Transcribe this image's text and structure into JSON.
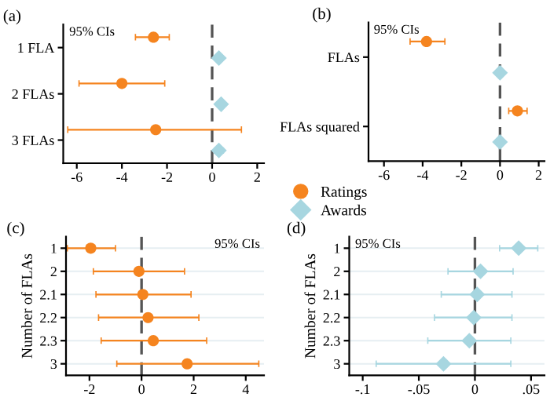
{
  "chart_data": [
    {
      "type": "scatter",
      "orientation": "horizontal",
      "title": "(a)",
      "annotations": [
        "95% CIs"
      ],
      "categories": [
        "1 FLA",
        "2 FLAs",
        "3 FLAs"
      ],
      "xlim": [
        -6.6,
        2.3
      ],
      "xticks": [
        -6,
        -4,
        -2,
        0,
        2
      ],
      "grid": false,
      "ref_lines": [
        {
          "axis": "x",
          "value": 0,
          "color": "#555555",
          "line_style": "dashed"
        }
      ],
      "series": [
        {
          "color": "#f5841f",
          "marker": "circle",
          "values": [
            -2.6,
            -4.0,
            -2.5
          ],
          "errors": [
            [
              -3.4,
              -1.9
            ],
            [
              -5.9,
              -2.1
            ],
            [
              -6.4,
              1.3
            ]
          ]
        },
        {
          "color": "#a7d6e0",
          "marker": "diamond",
          "values": [
            0.3,
            0.4,
            0.3
          ],
          "errors": [
            [
              0.15,
              0.45
            ],
            [
              0.25,
              0.55
            ],
            [
              0.1,
              0.5
            ]
          ]
        }
      ]
    },
    {
      "type": "scatter",
      "orientation": "horizontal",
      "title": "(b)",
      "annotations": [
        "95% CIs"
      ],
      "categories": [
        "FLAs",
        "FLAs squared"
      ],
      "xlim": [
        -6.8,
        2.3
      ],
      "xticks": [
        -6,
        -4,
        -2,
        0,
        2
      ],
      "grid": false,
      "legend": "bottom left",
      "ref_lines": [
        {
          "axis": "x",
          "value": 0,
          "color": "#555555",
          "line_style": "dashed"
        }
      ],
      "series": [
        {
          "name": "Ratings",
          "color": "#f5841f",
          "marker": "circle",
          "values": [
            -3.8,
            0.9
          ],
          "errors": [
            [
              -4.65,
              -2.85
            ],
            [
              0.45,
              1.4
            ]
          ]
        },
        {
          "name": "Awards",
          "color": "#a7d6e0",
          "marker": "diamond",
          "values": [
            0,
            0
          ],
          "errors": [
            [
              -0.1,
              0.1
            ],
            [
              -0.1,
              0.1
            ]
          ]
        }
      ]
    },
    {
      "type": "scatter",
      "orientation": "horizontal",
      "title": "(c)",
      "ylabel": "Number of FLAs",
      "annotations": [
        "95% CIs"
      ],
      "categories": [
        "1",
        "2",
        "2.1",
        "2.2",
        "2.3",
        "3"
      ],
      "xlim": [
        -2.9,
        4.7
      ],
      "xticks": [
        -2,
        0,
        2,
        4
      ],
      "grid": "y",
      "ref_lines": [
        {
          "axis": "x",
          "value": 0,
          "color": "#555555",
          "line_style": "dashed"
        }
      ],
      "series": [
        {
          "color": "#f5841f",
          "marker": "circle",
          "values": [
            -1.95,
            -0.1,
            0.05,
            0.25,
            0.45,
            1.75
          ],
          "errors": [
            [
              -2.85,
              -1.0
            ],
            [
              -1.85,
              1.65
            ],
            [
              -1.75,
              1.9
            ],
            [
              -1.65,
              2.2
            ],
            [
              -1.55,
              2.5
            ],
            [
              -0.95,
              4.5
            ]
          ]
        }
      ]
    },
    {
      "type": "scatter",
      "orientation": "horizontal",
      "title": "(d)",
      "ylabel": "Number of FLAs",
      "annotations": [
        "95% CIs"
      ],
      "categories": [
        "1",
        "2",
        "2.1",
        "2.2",
        "2.3",
        "3"
      ],
      "xlim": [
        -0.112,
        0.062
      ],
      "xticks": [
        {
          "value": -0.1,
          "label": "-.1"
        },
        {
          "value": -0.05,
          "label": "-.05"
        },
        0,
        {
          "value": 0.05,
          "label": ".05"
        }
      ],
      "grid": "y",
      "ref_lines": [
        {
          "axis": "x",
          "value": 0,
          "color": "#555555",
          "line_style": "dashed"
        }
      ],
      "series": [
        {
          "color": "#a7d6e0",
          "marker": "diamond",
          "values": [
            0.039,
            0.005,
            0.002,
            -0.001,
            -0.005,
            -0.028
          ],
          "errors": [
            [
              0.022,
              0.056
            ],
            [
              -0.024,
              0.034
            ],
            [
              -0.03,
              0.033
            ],
            [
              -0.036,
              0.033
            ],
            [
              -0.042,
              0.032
            ],
            [
              -0.088,
              0.032
            ]
          ]
        }
      ]
    }
  ]
}
